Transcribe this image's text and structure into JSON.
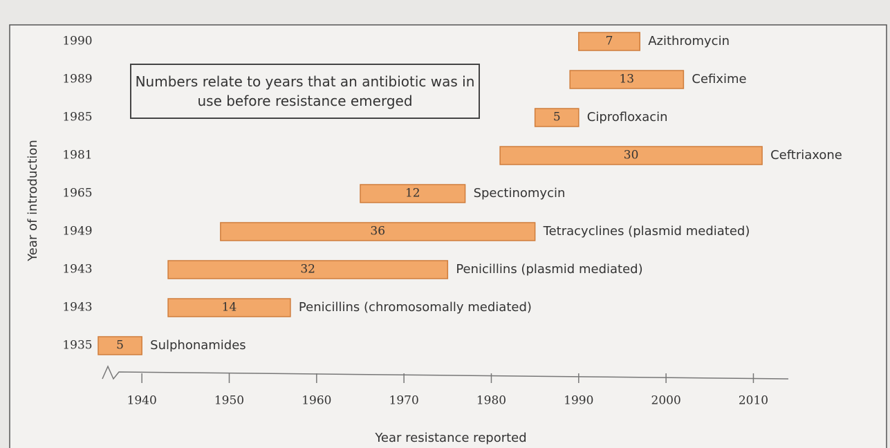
{
  "chart_data": {
    "type": "range-bar",
    "ylabel": "Year of introduction",
    "xlabel": "Year resistance reported",
    "annotation": "Numbers relate to years that an antibiotic was in use before resistance emerged",
    "color": "#f2a869",
    "bars": [
      {
        "start": 1990,
        "years": 7,
        "label": "Azithromycin"
      },
      {
        "start": 1989,
        "years": 13,
        "label": "Cefixime"
      },
      {
        "start": 1985,
        "years": 5,
        "label": "Ciprofloxacin"
      },
      {
        "start": 1981,
        "years": 30,
        "label": "Ceftriaxone"
      },
      {
        "start": 1965,
        "years": 12,
        "label": "Spectinomycin"
      },
      {
        "start": 1949,
        "years": 36,
        "label": "Tetracyclines (plasmid mediated)"
      },
      {
        "start": 1943,
        "years": 32,
        "label": "Penicillins (plasmid mediated)"
      },
      {
        "start": 1943,
        "years": 14,
        "label": "Penicillins (chromosomally mediated)"
      },
      {
        "start": 1935,
        "years": 5,
        "label": "Sulphonamides"
      }
    ],
    "xlim": [
      1935,
      2014
    ],
    "xticks": [
      1940,
      1950,
      1960,
      1970,
      1980,
      1990,
      2000,
      2010
    ]
  }
}
